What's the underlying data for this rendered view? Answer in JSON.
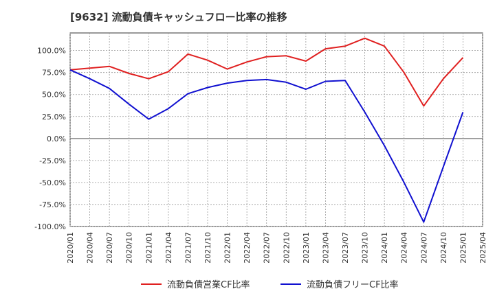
{
  "chart_data": {
    "type": "line",
    "title": "[9632]  流動負債キャッシュフロー比率の推移",
    "xlabel": "",
    "ylabel": "",
    "ylim": [
      -100,
      120
    ],
    "yticks": [
      -100,
      -75,
      -50,
      -25,
      0,
      25,
      50,
      75,
      100
    ],
    "ytick_labels": [
      "-100.0%",
      "-75.0%",
      "-50.0%",
      "-25.0%",
      "0.0%",
      "25.0%",
      "50.0%",
      "75.0%",
      "100.0%"
    ],
    "categories": [
      "2020/01",
      "2020/04",
      "2020/07",
      "2020/10",
      "2021/01",
      "2021/04",
      "2021/07",
      "2021/10",
      "2022/01",
      "2022/04",
      "2022/07",
      "2022/10",
      "2023/01",
      "2023/04",
      "2023/07",
      "2023/10",
      "2024/01",
      "2024/04",
      "2024/07",
      "2024/10",
      "2025/01",
      "2025/04"
    ],
    "grid": true,
    "legend_position": "bottom",
    "series": [
      {
        "name": "流動負債営業CF比率",
        "color": "#e02020",
        "values": [
          78,
          80,
          82,
          74,
          68,
          76,
          96,
          89,
          79,
          87,
          93,
          94,
          88,
          102,
          105,
          114,
          105,
          75,
          37,
          68,
          92,
          null
        ]
      },
      {
        "name": "流動負債フリーCF比率",
        "color": "#1010d0",
        "values": [
          78,
          68,
          57,
          39,
          22,
          34,
          51,
          58,
          63,
          66,
          67,
          64,
          56,
          65,
          66,
          30,
          -8,
          -50,
          -95,
          -32,
          30,
          null
        ]
      }
    ]
  }
}
